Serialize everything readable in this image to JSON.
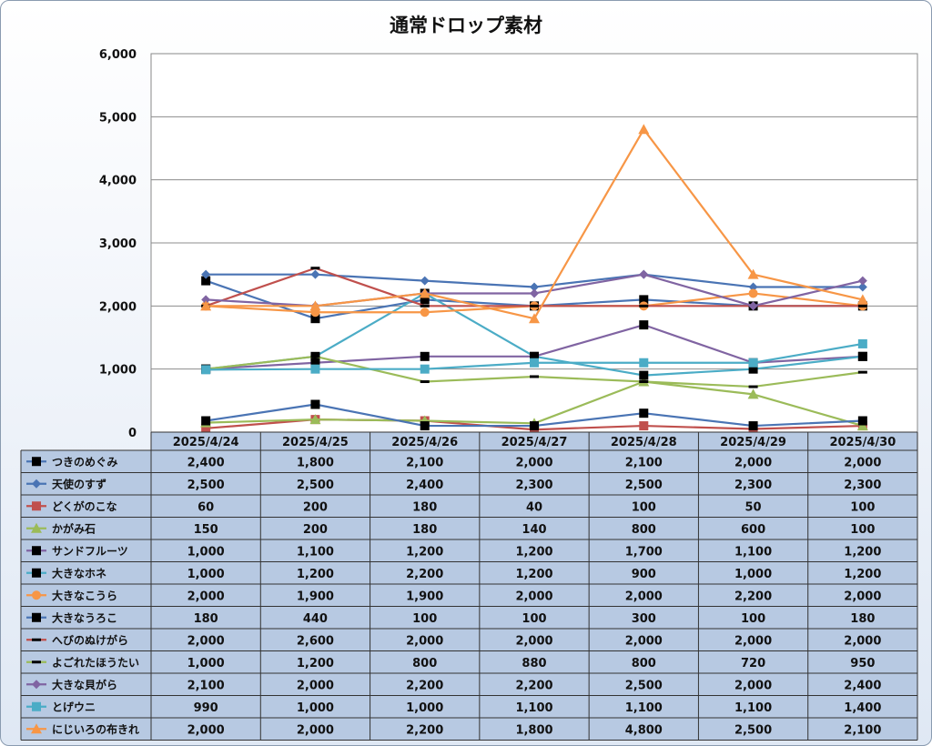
{
  "chart_data": {
    "type": "line",
    "title": "通常ドロップ素材",
    "x": [
      "2025/4/24",
      "2025/4/25",
      "2025/4/26",
      "2025/4/27",
      "2025/4/28",
      "2025/4/29",
      "2025/4/30"
    ],
    "ylim": [
      0,
      6000
    ],
    "yticks": [
      "0",
      "1,000",
      "2,000",
      "3,000",
      "4,000",
      "5,000",
      "6,000"
    ],
    "grid": true,
    "legend": "data-table",
    "series": [
      {
        "name": "つきのめぐみ",
        "color": "#4a74b4",
        "marker": "square-black",
        "values": [
          2400,
          1800,
          2100,
          2000,
          2100,
          2000,
          2000
        ],
        "labels": [
          "2,400",
          "1,800",
          "2,100",
          "2,000",
          "2,100",
          "2,000",
          "2,000"
        ]
      },
      {
        "name": "天使のすず",
        "color": "#4a74b4",
        "marker": "diamond",
        "values": [
          2500,
          2500,
          2400,
          2300,
          2500,
          2300,
          2300
        ],
        "labels": [
          "2,500",
          "2,500",
          "2,400",
          "2,300",
          "2,500",
          "2,300",
          "2,300"
        ]
      },
      {
        "name": "どくがのこな",
        "color": "#c0504d",
        "marker": "square",
        "values": [
          60,
          200,
          180,
          40,
          100,
          50,
          100
        ],
        "labels": [
          "60",
          "200",
          "180",
          "40",
          "100",
          "50",
          "100"
        ]
      },
      {
        "name": "かがみ石",
        "color": "#9bbb59",
        "marker": "triangle",
        "values": [
          150,
          200,
          180,
          140,
          800,
          600,
          100
        ],
        "labels": [
          "150",
          "200",
          "180",
          "140",
          "800",
          "600",
          "100"
        ]
      },
      {
        "name": "サンドフルーツ",
        "color": "#8064a2",
        "marker": "square-black",
        "values": [
          1000,
          1100,
          1200,
          1200,
          1700,
          1100,
          1200
        ],
        "labels": [
          "1,000",
          "1,100",
          "1,200",
          "1,200",
          "1,700",
          "1,100",
          "1,200"
        ]
      },
      {
        "name": "大きなホネ",
        "color": "#4bacc6",
        "marker": "square-black",
        "values": [
          1000,
          1200,
          2200,
          1200,
          900,
          1000,
          1200
        ],
        "labels": [
          "1,000",
          "1,200",
          "2,200",
          "1,200",
          "900",
          "1,000",
          "1,200"
        ]
      },
      {
        "name": "大きなこうら",
        "color": "#f79646",
        "marker": "circle",
        "values": [
          2000,
          1900,
          1900,
          2000,
          2000,
          2200,
          2000
        ],
        "labels": [
          "2,000",
          "1,900",
          "1,900",
          "2,000",
          "2,000",
          "2,200",
          "2,000"
        ]
      },
      {
        "name": "大きなうろこ",
        "color": "#4a74b4",
        "marker": "square-black",
        "values": [
          180,
          440,
          100,
          100,
          300,
          100,
          180
        ],
        "labels": [
          "180",
          "440",
          "100",
          "100",
          "300",
          "100",
          "180"
        ]
      },
      {
        "name": "へびのぬけがら",
        "color": "#c0504d",
        "marker": "dash",
        "values": [
          2000,
          2600,
          2000,
          2000,
          2000,
          2000,
          2000
        ],
        "labels": [
          "2,000",
          "2,600",
          "2,000",
          "2,000",
          "2,000",
          "2,000",
          "2,000"
        ]
      },
      {
        "name": "よごれたほうたい",
        "color": "#9bbb59",
        "marker": "dash",
        "values": [
          1000,
          1200,
          800,
          880,
          800,
          720,
          950
        ],
        "labels": [
          "1,000",
          "1,200",
          "800",
          "880",
          "800",
          "720",
          "950"
        ]
      },
      {
        "name": "大きな貝がら",
        "color": "#8064a2",
        "marker": "diamond",
        "values": [
          2100,
          2000,
          2200,
          2200,
          2500,
          2000,
          2400
        ],
        "labels": [
          "2,100",
          "2,000",
          "2,200",
          "2,200",
          "2,500",
          "2,000",
          "2,400"
        ]
      },
      {
        "name": "とげウニ",
        "color": "#4bacc6",
        "marker": "square",
        "values": [
          990,
          1000,
          1000,
          1100,
          1100,
          1100,
          1400
        ],
        "labels": [
          "990",
          "1,000",
          "1,000",
          "1,100",
          "1,100",
          "1,100",
          "1,400"
        ]
      },
      {
        "name": "にじいろの布きれ",
        "color": "#f79646",
        "marker": "triangle",
        "values": [
          2000,
          2000,
          2200,
          1800,
          4800,
          2500,
          2100
        ],
        "labels": [
          "2,000",
          "2,000",
          "2,200",
          "1,800",
          "4,800",
          "2,500",
          "2,100"
        ]
      }
    ]
  }
}
